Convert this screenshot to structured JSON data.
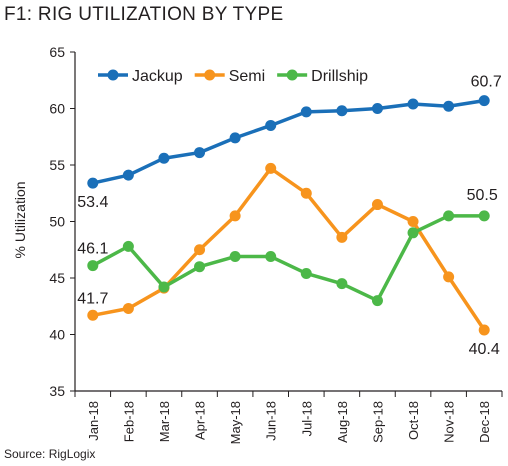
{
  "chart_data": {
    "type": "line",
    "title": "F1:  RIG UTILIZATION BY TYPE",
    "ylabel": "% Utilization",
    "xlabel": "",
    "ylim": [
      35,
      65
    ],
    "yticks": [
      35,
      40,
      45,
      50,
      55,
      60,
      65
    ],
    "categories": [
      "Jan-18",
      "Feb-18",
      "Mar-18",
      "Apr-18",
      "May-18",
      "Jun-18",
      "Jul-18",
      "Aug-18",
      "Sep-18",
      "Oct-18",
      "Nov-18",
      "Dec-18"
    ],
    "series": [
      {
        "name": "Jackup",
        "color": "#1a6fb8",
        "values": [
          53.4,
          54.1,
          55.6,
          56.1,
          57.4,
          58.5,
          59.7,
          59.8,
          60.0,
          60.4,
          60.2,
          60.7
        ]
      },
      {
        "name": "Semi",
        "color": "#f7941d",
        "values": [
          41.7,
          42.3,
          44.1,
          47.5,
          50.5,
          54.7,
          52.5,
          48.6,
          51.5,
          50.0,
          45.1,
          40.4
        ]
      },
      {
        "name": "Drillship",
        "color": "#4cb848",
        "values": [
          46.1,
          47.8,
          44.2,
          46.0,
          46.9,
          46.9,
          45.4,
          44.5,
          43.0,
          49.0,
          50.5,
          50.5
        ]
      }
    ],
    "data_labels": [
      "53.4",
      "60.7",
      "41.7",
      "40.4",
      "46.1",
      "50.5"
    ],
    "legend_position": "top-left",
    "grid": false
  },
  "source": "Source: RigLogix"
}
